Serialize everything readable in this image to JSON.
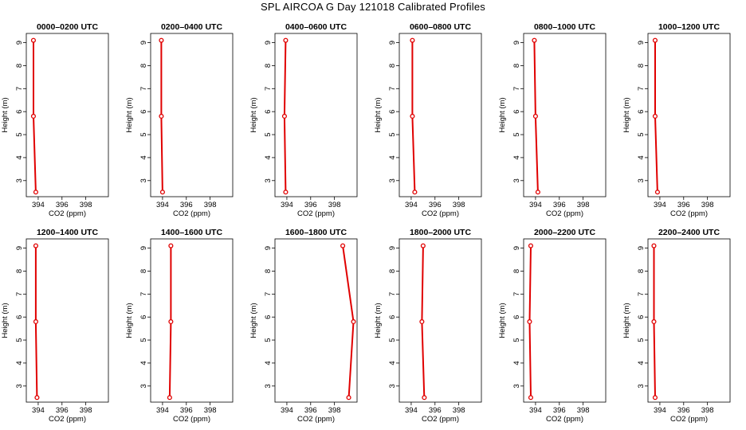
{
  "title": "SPL AIRCOA G  Day 121018  Calibrated Profiles",
  "colors": {
    "series": "#e00000",
    "axis": "#000000",
    "background": "#ffffff"
  },
  "chart_data": {
    "type": "line",
    "title": "SPL AIRCOA G  Day 121018  Calibrated Profiles",
    "xlabel": "CO2 (ppm)",
    "ylabel": "Height (m)",
    "xlim": [
      393.0,
      399.9
    ],
    "ylim": [
      2.3,
      9.4
    ],
    "xticks": [
      394,
      396,
      398
    ],
    "yticks": [
      3,
      4,
      5,
      6,
      7,
      8,
      9
    ],
    "grid": false,
    "panels": [
      {
        "title": "0000–0200 UTC",
        "points": [
          {
            "co2": 393.6,
            "height": 9.1
          },
          {
            "co2": 393.6,
            "height": 5.8
          },
          {
            "co2": 393.8,
            "height": 2.5
          }
        ]
      },
      {
        "title": "0200–0400 UTC",
        "points": [
          {
            "co2": 393.9,
            "height": 9.1
          },
          {
            "co2": 393.9,
            "height": 5.8
          },
          {
            "co2": 394.0,
            "height": 2.5
          }
        ]
      },
      {
        "title": "0400–0600 UTC",
        "points": [
          {
            "co2": 393.9,
            "height": 9.1
          },
          {
            "co2": 393.8,
            "height": 5.8
          },
          {
            "co2": 393.9,
            "height": 2.5
          }
        ]
      },
      {
        "title": "0600–0800 UTC",
        "points": [
          {
            "co2": 394.1,
            "height": 9.1
          },
          {
            "co2": 394.1,
            "height": 5.8
          },
          {
            "co2": 394.3,
            "height": 2.5
          }
        ]
      },
      {
        "title": "0800–1000 UTC",
        "points": [
          {
            "co2": 393.9,
            "height": 9.1
          },
          {
            "co2": 394.0,
            "height": 5.8
          },
          {
            "co2": 394.2,
            "height": 2.5
          }
        ]
      },
      {
        "title": "1000–1200 UTC",
        "points": [
          {
            "co2": 393.6,
            "height": 9.1
          },
          {
            "co2": 393.6,
            "height": 5.8
          },
          {
            "co2": 393.8,
            "height": 2.5
          }
        ]
      },
      {
        "title": "1200–1400 UTC",
        "points": [
          {
            "co2": 393.8,
            "height": 9.1
          },
          {
            "co2": 393.8,
            "height": 5.8
          },
          {
            "co2": 393.9,
            "height": 2.5
          }
        ]
      },
      {
        "title": "1400–1600 UTC",
        "points": [
          {
            "co2": 394.7,
            "height": 9.1
          },
          {
            "co2": 394.7,
            "height": 5.8
          },
          {
            "co2": 394.6,
            "height": 2.5
          }
        ]
      },
      {
        "title": "1600–1800 UTC",
        "points": [
          {
            "co2": 398.7,
            "height": 9.1
          },
          {
            "co2": 399.6,
            "height": 5.8
          },
          {
            "co2": 399.2,
            "height": 2.5
          }
        ]
      },
      {
        "title": "1800–2000 UTC",
        "points": [
          {
            "co2": 395.0,
            "height": 9.1
          },
          {
            "co2": 394.9,
            "height": 5.8
          },
          {
            "co2": 395.1,
            "height": 2.5
          }
        ]
      },
      {
        "title": "2000–2200 UTC",
        "points": [
          {
            "co2": 393.6,
            "height": 9.1
          },
          {
            "co2": 393.5,
            "height": 5.8
          },
          {
            "co2": 393.6,
            "height": 2.5
          }
        ]
      },
      {
        "title": "2200–2400 UTC",
        "points": [
          {
            "co2": 393.5,
            "height": 9.1
          },
          {
            "co2": 393.5,
            "height": 5.8
          },
          {
            "co2": 393.6,
            "height": 2.5
          }
        ]
      }
    ]
  }
}
